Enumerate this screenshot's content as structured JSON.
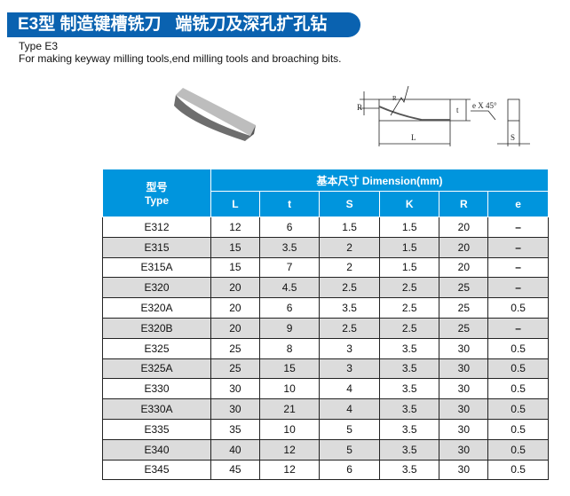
{
  "title": "E3型 制造键槽铣刀   端铣刀及深孔扩孔钻",
  "subtitle": "Type E3",
  "description": "For making keyway milling tools,end milling tools and broaching bits.",
  "diagram": {
    "labels": {
      "R": "R",
      "t": "t",
      "L": "L",
      "S": "S",
      "chamfer": "e X 45°"
    }
  },
  "table": {
    "type_header_cn": "型号",
    "type_header_en": "Type",
    "dimension_header": "基本尺寸  Dimension(mm)",
    "columns": [
      "L",
      "t",
      "S",
      "K",
      "R",
      "e"
    ],
    "rows": [
      [
        "E312",
        "12",
        "6",
        "1.5",
        "1.5",
        "20",
        "–"
      ],
      [
        "E315",
        "15",
        "3.5",
        "2",
        "1.5",
        "20",
        "–"
      ],
      [
        "E315A",
        "15",
        "7",
        "2",
        "1.5",
        "20",
        "–"
      ],
      [
        "E320",
        "20",
        "4.5",
        "2.5",
        "2.5",
        "25",
        "–"
      ],
      [
        "E320A",
        "20",
        "6",
        "3.5",
        "2.5",
        "25",
        "0.5"
      ],
      [
        "E320B",
        "20",
        "9",
        "2.5",
        "2.5",
        "25",
        "–"
      ],
      [
        "E325",
        "25",
        "8",
        "3",
        "3.5",
        "30",
        "0.5"
      ],
      [
        "E325A",
        "25",
        "15",
        "3",
        "3.5",
        "30",
        "0.5"
      ],
      [
        "E330",
        "30",
        "10",
        "4",
        "3.5",
        "30",
        "0.5"
      ],
      [
        "E330A",
        "30",
        "21",
        "4",
        "3.5",
        "30",
        "0.5"
      ],
      [
        "E335",
        "35",
        "10",
        "5",
        "3.5",
        "30",
        "0.5"
      ],
      [
        "E340",
        "40",
        "12",
        "5",
        "3.5",
        "30",
        "0.5"
      ],
      [
        "E345",
        "45",
        "12",
        "6",
        "3.5",
        "30",
        "0.5"
      ]
    ]
  }
}
